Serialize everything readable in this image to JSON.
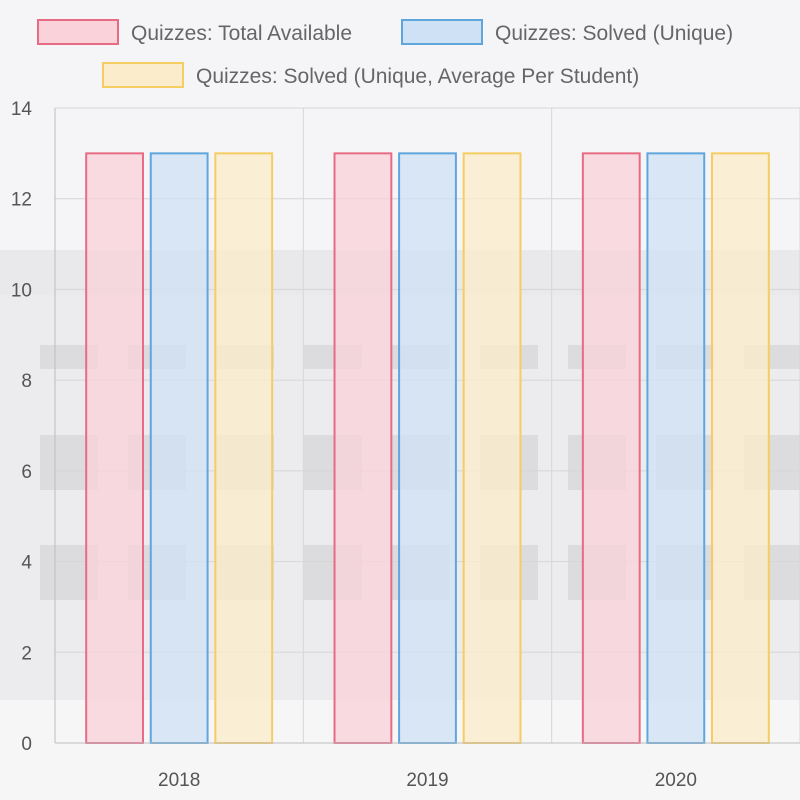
{
  "chart_data": {
    "type": "bar",
    "categories": [
      "2018",
      "2019",
      "2020"
    ],
    "series": [
      {
        "name": "Quizzes: Total Available",
        "values": [
          13,
          13,
          13
        ],
        "color": "#e86b84",
        "fill": "#f9d2da"
      },
      {
        "name": "Quizzes: Solved (Unique)",
        "values": [
          13,
          13,
          13
        ],
        "color": "#5ea6dc",
        "fill": "#cfe2f5"
      },
      {
        "name": "Quizzes: Solved (Unique, Average Per Student)",
        "values": [
          13,
          13,
          13
        ],
        "color": "#f5cd62",
        "fill": "#fbeccb"
      }
    ],
    "yticks": [
      "0",
      "2",
      "4",
      "6",
      "8",
      "10",
      "12",
      "14"
    ],
    "ylim": [
      0,
      14
    ],
    "grid": true,
    "legend_position": "top",
    "title": "",
    "xlabel": "",
    "ylabel": ""
  }
}
